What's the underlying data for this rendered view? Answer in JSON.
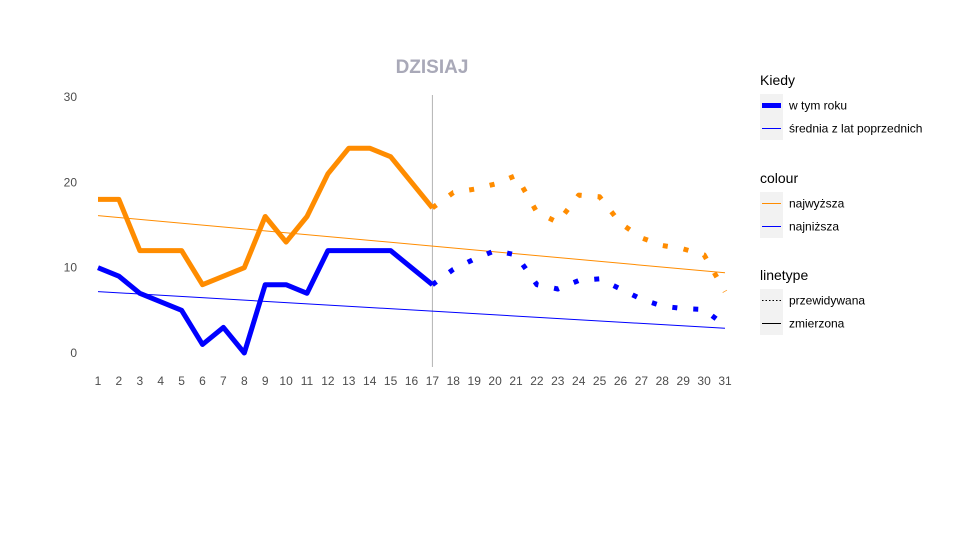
{
  "chart_data": {
    "type": "line",
    "title": "DZISIAJ",
    "xlabel": "",
    "ylabel": "",
    "x": [
      1,
      2,
      3,
      4,
      5,
      6,
      7,
      8,
      9,
      10,
      11,
      12,
      13,
      14,
      15,
      16,
      17,
      18,
      19,
      20,
      21,
      22,
      23,
      24,
      25,
      26,
      27,
      28,
      29,
      30,
      31
    ],
    "xlim": [
      1,
      31
    ],
    "ylim": [
      0,
      30
    ],
    "y_ticks": [
      0,
      10,
      20,
      30
    ],
    "today_x": 17,
    "grid": false,
    "legend_position": "right",
    "series": [
      {
        "name": "najwyższa",
        "kind": "w tym roku",
        "linetype": "zmierzona",
        "color": "#ff8c00",
        "x": [
          1,
          2,
          3,
          4,
          5,
          6,
          7,
          8,
          9,
          10,
          11,
          12,
          13,
          14,
          15,
          16,
          17
        ],
        "values": [
          18,
          18,
          12,
          12,
          12,
          8,
          9,
          10,
          16,
          13,
          16,
          21,
          24,
          24,
          23,
          20,
          17
        ]
      },
      {
        "name": "najwyższa",
        "kind": "w tym roku",
        "linetype": "przewidywana",
        "color": "#ff8c00",
        "x": [
          17,
          18,
          19,
          20,
          21,
          22,
          23,
          24,
          25,
          26,
          27,
          28,
          29,
          30,
          31
        ],
        "values": [
          17,
          18.8,
          19.2,
          19.8,
          20.8,
          16.5,
          15.3,
          18.5,
          18.3,
          15.2,
          13.5,
          12.6,
          12.2,
          11.5,
          7.2
        ]
      },
      {
        "name": "najniższa",
        "kind": "w tym roku",
        "linetype": "zmierzona",
        "color": "#0000ff",
        "x": [
          1,
          2,
          3,
          4,
          5,
          6,
          7,
          8,
          9,
          10,
          11,
          12,
          13,
          14,
          15,
          16,
          17
        ],
        "values": [
          10,
          9,
          7,
          6,
          5,
          1,
          3,
          0,
          8,
          8,
          7,
          12,
          12,
          12,
          12,
          10,
          8
        ]
      },
      {
        "name": "najniższa",
        "kind": "w tym roku",
        "linetype": "przewidywana",
        "color": "#0000ff",
        "x": [
          17,
          18,
          19,
          20,
          21,
          22,
          23,
          24,
          25,
          26,
          27,
          28,
          29,
          30,
          31
        ],
        "values": [
          8,
          9.8,
          11,
          12,
          11.5,
          8,
          7.5,
          8.5,
          8.7,
          7.5,
          6.3,
          5.5,
          5.2,
          5.1,
          3.2
        ]
      },
      {
        "name": "najwyższa",
        "kind": "średnia z lat poprzednich",
        "linetype": "zmierzona",
        "color": "#ff8c00",
        "x": [
          1,
          31
        ],
        "values": [
          16.1,
          9.4
        ]
      },
      {
        "name": "najniższa",
        "kind": "średnia z lat poprzednich",
        "linetype": "zmierzona",
        "color": "#0000ff",
        "x": [
          1,
          31
        ],
        "values": [
          7.2,
          2.9
        ]
      }
    ],
    "legends": [
      {
        "title": "Kiedy",
        "items": [
          {
            "label": "w tym roku",
            "color": "#0000ff",
            "style": "thick"
          },
          {
            "label": "średnia z lat poprzednich",
            "color": "#0000ff",
            "style": "thin"
          }
        ]
      },
      {
        "title": "colour",
        "items": [
          {
            "label": "najwyższa",
            "color": "#ff8c00",
            "style": "thin"
          },
          {
            "label": "najniższa",
            "color": "#0000ff",
            "style": "thin"
          }
        ]
      },
      {
        "title": "linetype",
        "items": [
          {
            "label": "przewidywana",
            "color": "#000000",
            "style": "dotted"
          },
          {
            "label": "zmierzona",
            "color": "#000000",
            "style": "solid"
          }
        ]
      }
    ]
  }
}
